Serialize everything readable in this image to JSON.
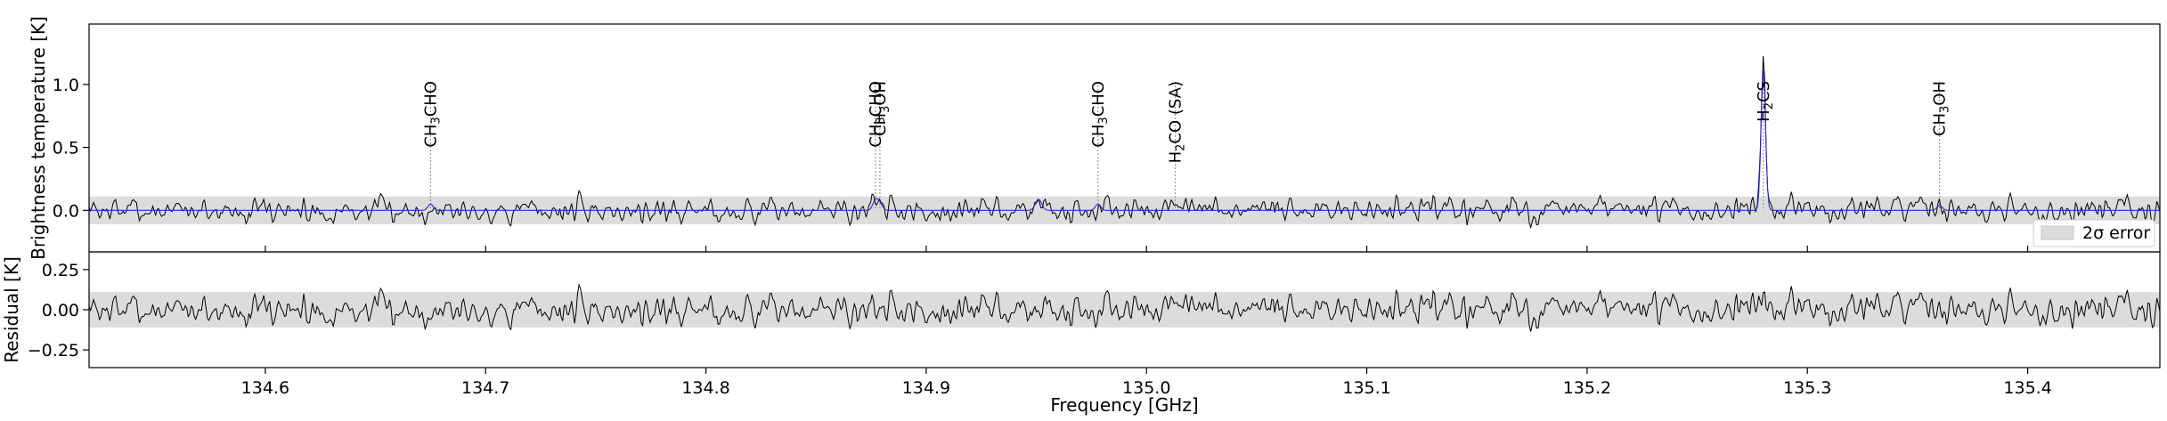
{
  "chart_data": {
    "type": "line",
    "xlabel": "Frequency [GHz]",
    "xlim": [
      134.52,
      135.46
    ],
    "xticks": [
      134.6,
      134.7,
      134.8,
      134.9,
      135.0,
      135.1,
      135.2,
      135.3,
      135.4
    ],
    "xtick_labels": [
      "134.6",
      "134.7",
      "134.8",
      "134.9",
      "135.0",
      "135.1",
      "135.2",
      "135.3",
      "135.4"
    ],
    "colors": {
      "observed": "#000000",
      "model": "#2a2ad0",
      "error_band": "#dcdcdc",
      "line_markers": "#888888"
    },
    "panels": [
      {
        "id": "spectrum",
        "ylabel": "Brightness temperature [K]",
        "ylim": [
          -0.33,
          1.48
        ],
        "yticks": [
          0.0,
          0.5,
          1.0
        ],
        "ytick_labels": [
          "0.0",
          "0.5",
          "1.0"
        ],
        "error_band": [
          -0.11,
          0.11
        ],
        "legend": {
          "label": "2σ error",
          "position": "lower-right"
        },
        "series": [
          {
            "role": "observed",
            "noise_rms": 0.05,
            "seed": 7
          },
          {
            "role": "model"
          }
        ],
        "features": [
          {
            "x": 134.675,
            "amp": 0.05,
            "width": 0.0012
          },
          {
            "x": 134.877,
            "amp": 0.08,
            "width": 0.0012
          },
          {
            "x": 134.879,
            "amp": 0.05,
            "width": 0.0012
          },
          {
            "x": 134.951,
            "amp": 0.09,
            "width": 0.0014
          },
          {
            "x": 134.978,
            "amp": 0.05,
            "width": 0.0012
          },
          {
            "x": 135.28,
            "amp": 1.12,
            "width": 0.001
          },
          {
            "x": 135.36,
            "amp": 0.04,
            "width": 0.0012
          }
        ],
        "line_ids": [
          {
            "x": 134.675,
            "label": "CH3CHO",
            "main": "CH",
            "sub": "3",
            "rest": "CHO"
          },
          {
            "x": 134.877,
            "label": "CH3CHO",
            "main": "CH",
            "sub": "3",
            "rest": "CHO"
          },
          {
            "x": 134.879,
            "label": "CH3OH",
            "main": "CH",
            "sub": "3",
            "rest": "OH"
          },
          {
            "x": 134.978,
            "label": "CH3CHO",
            "main": "CH",
            "sub": "3",
            "rest": "CHO"
          },
          {
            "x": 135.013,
            "label": "H2CO (SA)",
            "main": "H",
            "sub": "2",
            "rest": "CO (SA)"
          },
          {
            "x": 135.28,
            "label": "H2CS",
            "main": "H",
            "sub": "2",
            "rest": "CS"
          },
          {
            "x": 135.36,
            "label": "CH3OH",
            "main": "CH",
            "sub": "3",
            "rest": "OH"
          }
        ]
      },
      {
        "id": "residual",
        "ylabel": "Residual [K]",
        "ylim": [
          -0.36,
          0.36
        ],
        "yticks": [
          -0.25,
          0.0,
          0.25
        ],
        "ytick_labels": [
          "−0.25",
          "0.00",
          "0.25"
        ],
        "error_band": [
          -0.11,
          0.11
        ],
        "series": [
          {
            "role": "residual",
            "noise_rms": 0.05,
            "seed": 7
          }
        ]
      }
    ]
  }
}
